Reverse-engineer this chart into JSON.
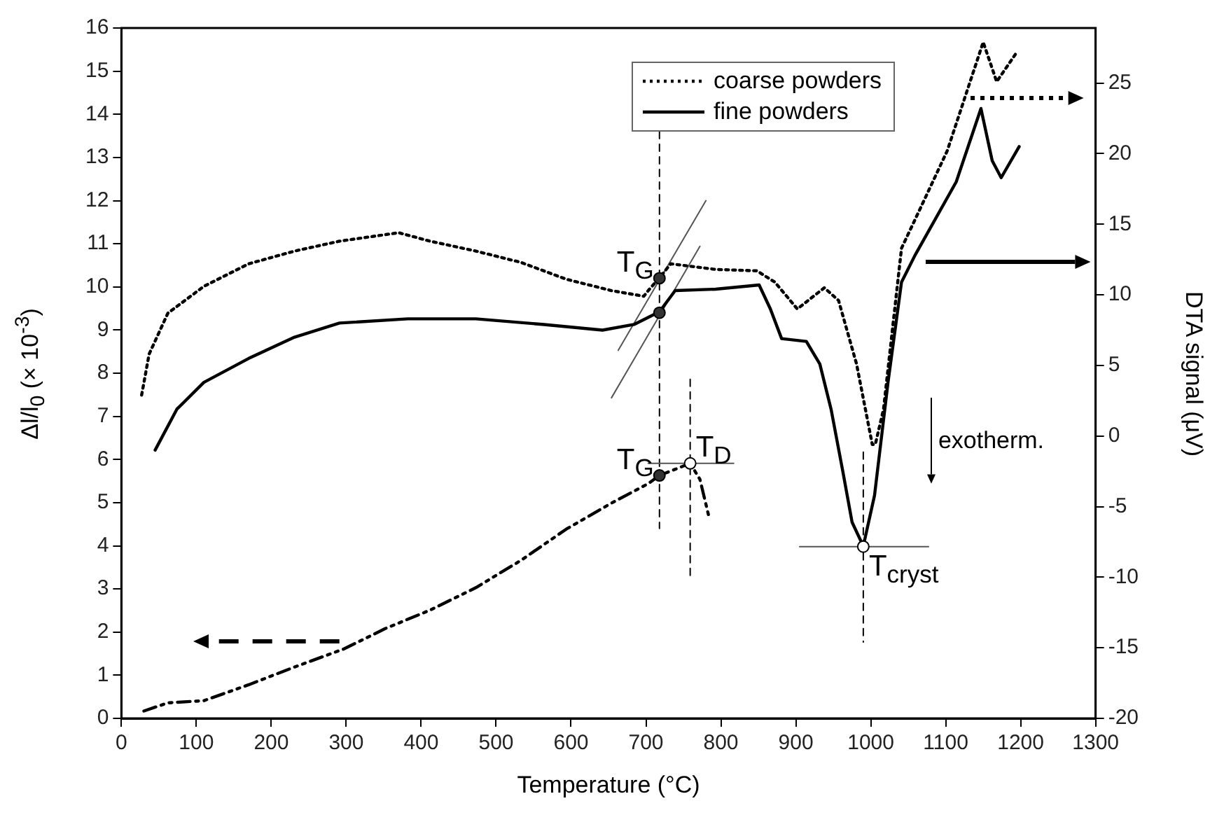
{
  "chart_data": {
    "type": "line",
    "xlabel": "Temperature (°C)",
    "ylabel": "Δl/l$_{0}$ (× 10$^{-3}$)",
    "y2label": "DTA signal (μV)",
    "xlim": [
      0,
      1300
    ],
    "xticks": [
      0,
      100,
      200,
      300,
      400,
      500,
      600,
      700,
      800,
      900,
      1000,
      1100,
      1200,
      1300
    ],
    "ylim": [
      0,
      16
    ],
    "yticks": [
      0,
      1,
      2,
      3,
      4,
      5,
      6,
      7,
      8,
      9,
      10,
      11,
      12,
      13,
      14,
      15,
      16
    ],
    "y2lim": [
      -20,
      28.9
    ],
    "y2ticks": [
      -20,
      -15,
      -10,
      -5,
      0,
      5,
      10,
      15,
      20,
      25
    ],
    "grid": false,
    "legend": "top",
    "annotations": [
      {
        "text": "T$_{G}$",
        "x": 718,
        "y": 10.2
      },
      {
        "text": "T$_{G}$",
        "x": 718,
        "y": 5.63
      },
      {
        "text": "T$_{D}$",
        "x": 759,
        "y": 5.91
      },
      {
        "text": "T$_{cryst}$",
        "x": 990,
        "y": 3.98
      },
      "exotherm."
    ],
    "series": [
      {
        "name": "coarse powders",
        "color": "#000000",
        "axis": "y2",
        "line_style": "dotted",
        "x": [
          27,
          37,
          62,
          110,
          170,
          231,
          291,
          370,
          412,
          473,
          533,
          594,
          654,
          697,
          703,
          718,
          733,
          793,
          848,
          872,
          902,
          938,
          957,
          981,
          1002,
          1006,
          1017,
          1041,
          1065,
          1102,
          1150,
          1168,
          1195
        ],
        "values": [
          2.9,
          5.8,
          8.7,
          10.6,
          12.2,
          13.1,
          13.8,
          14.4,
          13.8,
          13.1,
          12.3,
          11.1,
          10.3,
          9.9,
          10.3,
          11.2,
          12.2,
          11.8,
          11.7,
          10.9,
          9.0,
          10.5,
          9.6,
          5.1,
          -0.6,
          -0.6,
          1.9,
          13.3,
          16.0,
          20.2,
          27.9,
          25.1,
          27.2
        ]
      },
      {
        "name": "fine powders",
        "color": "#000000",
        "axis": "y2",
        "line_style": "solid",
        "x": [
          45,
          74,
          110,
          170,
          231,
          291,
          382,
          473,
          564,
          642,
          684,
          718,
          739,
          793,
          851,
          866,
          881,
          914,
          932,
          947,
          963,
          975,
          990,
          1005,
          1023,
          1041,
          1059,
          1114,
          1147,
          1162,
          1174,
          1198
        ],
        "values": [
          -1.0,
          1.9,
          3.8,
          5.5,
          7.0,
          8.0,
          8.3,
          8.3,
          7.9,
          7.5,
          7.9,
          8.8,
          10.3,
          10.4,
          10.7,
          9.0,
          6.9,
          6.7,
          5.1,
          1.9,
          -2.6,
          -6.1,
          -7.8,
          -4.2,
          3.8,
          10.9,
          12.8,
          18.0,
          23.2,
          19.5,
          18.3,
          20.5
        ]
      },
      {
        "color": "#000000",
        "axis": "y",
        "line_style": "dashed",
        "x": [
          30,
          62,
          110,
          170,
          231,
          297,
          352,
          412,
          473,
          533,
          594,
          654,
          703,
          718,
          759,
          772,
          785
        ],
        "values": [
          0.17,
          0.36,
          0.41,
          0.78,
          1.19,
          1.61,
          2.08,
          2.51,
          3.03,
          3.66,
          4.39,
          4.99,
          5.44,
          5.63,
          5.91,
          5.54,
          4.6
        ]
      },
      {
        "color": "#555555",
        "axis": "y",
        "line_style": "solid",
        "x": [
          663,
          780
        ],
        "values": [
          8.53,
          12.0
        ]
      },
      {
        "color": "#555555",
        "axis": "y",
        "line_style": "solid",
        "x": [
          654,
          772
        ],
        "values": [
          7.43,
          10.94
        ]
      },
      {
        "color": "#555555",
        "axis": "y",
        "line_style": "solid",
        "x": [
          703,
          817
        ],
        "values": [
          5.91,
          5.91
        ]
      },
      {
        "color": "#555555",
        "axis": "y",
        "line_style": "solid",
        "x": [
          905,
          1077
        ],
        "values": [
          3.98,
          3.98
        ]
      },
      {
        "color": "#000000",
        "axis": "y",
        "line_style": "dashed",
        "x": [
          718,
          718
        ],
        "values": [
          13.6,
          4.4
        ]
      },
      {
        "color": "#000000",
        "axis": "y",
        "line_style": "dashed",
        "x": [
          759,
          759
        ],
        "values": [
          7.86,
          3.24
        ]
      },
      {
        "color": "#000000",
        "axis": "y",
        "line_style": "dashed",
        "x": [
          990,
          990
        ],
        "values": [
          6.17,
          1.77
        ]
      },
      {
        "type": "scatter",
        "color": "#333333",
        "axis": "y",
        "marker": "circle",
        "x": [
          718,
          718,
          718
        ],
        "values": [
          10.2,
          9.4,
          5.63
        ]
      },
      {
        "type": "scatter",
        "color": "#ffffff",
        "axis": "y",
        "marker": "circle",
        "x": [
          759,
          990
        ],
        "values": [
          5.91,
          3.98
        ]
      }
    ]
  }
}
